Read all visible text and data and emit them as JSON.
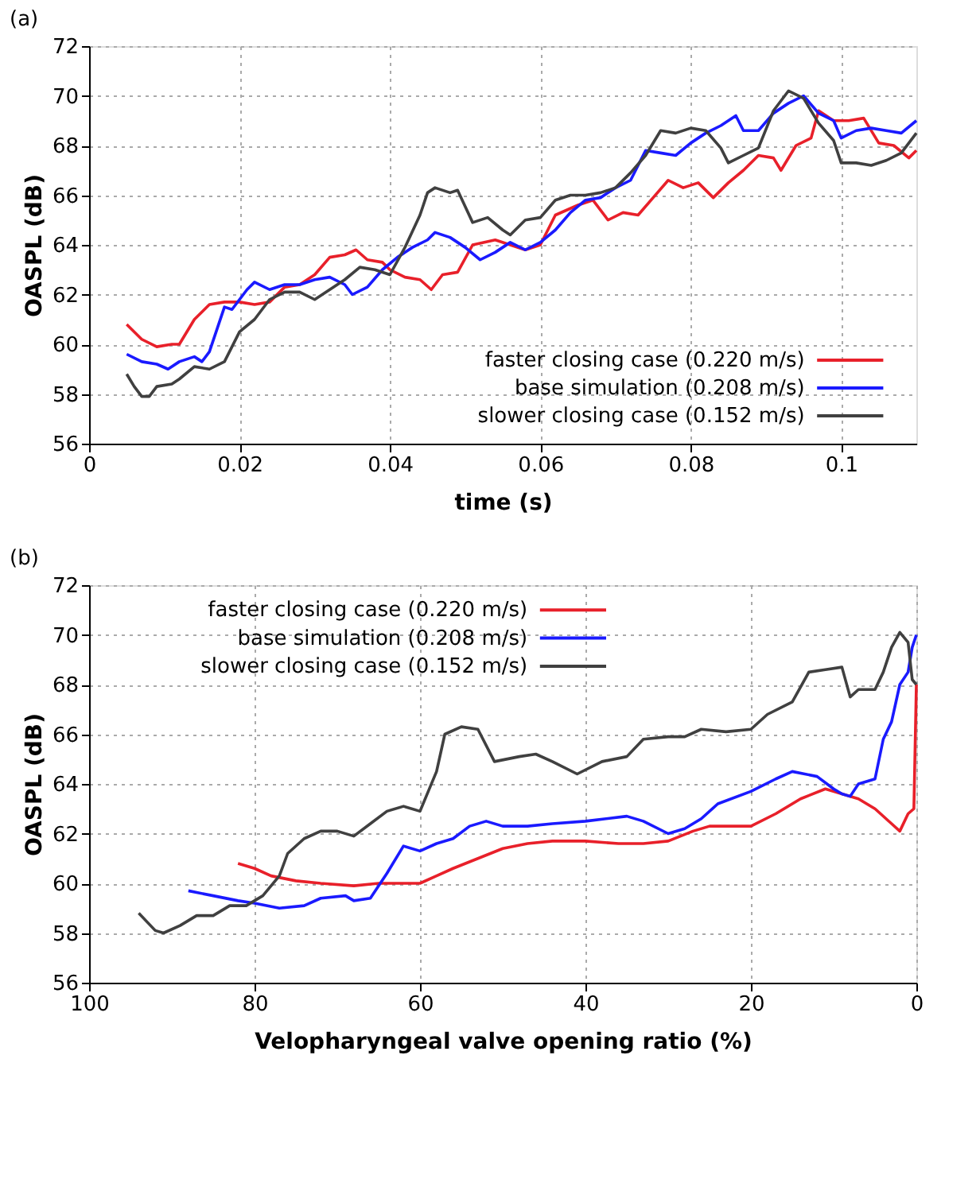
{
  "chart_data": [
    {
      "type": "line",
      "annotations": [
        "(a)"
      ],
      "xlabel": "time (s)",
      "ylabel": "OASPL (dB)",
      "xlim": [
        0,
        0.11
      ],
      "xticks": [
        0,
        0.02,
        0.04,
        0.06,
        0.08,
        0.1
      ],
      "ylim": [
        56,
        72
      ],
      "yticks": [
        56,
        58,
        60,
        62,
        64,
        66,
        68,
        70,
        72
      ],
      "grid": true,
      "legend": "bottom right",
      "line_style": "solid",
      "series": [
        {
          "name": "faster closing case (0.220 m/s)",
          "color": "#e8202a",
          "x": [
            0.005,
            0.007,
            0.009,
            0.011,
            0.012,
            0.014,
            0.016,
            0.018,
            0.02,
            0.022,
            0.024,
            0.026,
            0.028,
            0.03,
            0.032,
            0.034,
            0.0355,
            0.037,
            0.039,
            0.04,
            0.042,
            0.044,
            0.0455,
            0.047,
            0.049,
            0.051,
            0.054,
            0.056,
            0.058,
            0.06,
            0.062,
            0.065,
            0.067,
            0.069,
            0.071,
            0.073,
            0.075,
            0.077,
            0.079,
            0.081,
            0.083,
            0.085,
            0.087,
            0.089,
            0.091,
            0.092,
            0.094,
            0.096,
            0.097,
            0.099,
            0.101,
            0.103,
            0.105,
            0.107,
            0.109,
            0.11
          ],
          "values": [
            60.8,
            60.2,
            59.9,
            60.0,
            60.0,
            61.0,
            61.6,
            61.7,
            61.7,
            61.6,
            61.7,
            62.3,
            62.4,
            62.8,
            63.5,
            63.6,
            63.8,
            63.4,
            63.3,
            63.0,
            62.7,
            62.6,
            62.2,
            62.8,
            62.9,
            64.0,
            64.2,
            64.0,
            63.8,
            64.0,
            65.2,
            65.6,
            65.8,
            65.0,
            65.3,
            65.2,
            65.9,
            66.6,
            66.3,
            66.5,
            65.9,
            66.5,
            67.0,
            67.6,
            67.5,
            67.0,
            68.0,
            68.3,
            69.4,
            69.0,
            69.0,
            69.1,
            68.1,
            68.0,
            67.5,
            67.8
          ]
        },
        {
          "name": "base simulation (0.208 m/s)",
          "color": "#1a1aff",
          "x": [
            0.005,
            0.007,
            0.009,
            0.0105,
            0.012,
            0.014,
            0.015,
            0.016,
            0.018,
            0.019,
            0.021,
            0.022,
            0.024,
            0.026,
            0.028,
            0.03,
            0.032,
            0.034,
            0.035,
            0.037,
            0.039,
            0.041,
            0.043,
            0.045,
            0.046,
            0.048,
            0.05,
            0.052,
            0.054,
            0.056,
            0.058,
            0.06,
            0.062,
            0.064,
            0.066,
            0.068,
            0.07,
            0.072,
            0.074,
            0.076,
            0.078,
            0.08,
            0.082,
            0.084,
            0.086,
            0.087,
            0.089,
            0.091,
            0.093,
            0.095,
            0.097,
            0.099,
            0.1,
            0.102,
            0.104,
            0.106,
            0.108,
            0.11
          ],
          "values": [
            59.6,
            59.3,
            59.2,
            59.0,
            59.3,
            59.5,
            59.3,
            59.7,
            61.5,
            61.4,
            62.2,
            62.5,
            62.2,
            62.4,
            62.4,
            62.6,
            62.7,
            62.4,
            62.0,
            62.3,
            63.0,
            63.5,
            63.9,
            64.2,
            64.5,
            64.3,
            63.9,
            63.4,
            63.7,
            64.1,
            63.8,
            64.1,
            64.6,
            65.3,
            65.8,
            65.9,
            66.3,
            66.6,
            67.8,
            67.7,
            67.6,
            68.1,
            68.5,
            68.8,
            69.2,
            68.6,
            68.6,
            69.3,
            69.7,
            70.0,
            69.3,
            69.0,
            68.3,
            68.6,
            68.7,
            68.6,
            68.5,
            69.0
          ]
        },
        {
          "name": "slower closing case (0.152 m/s)",
          "color": "#404040",
          "x": [
            0.005,
            0.006,
            0.007,
            0.008,
            0.009,
            0.011,
            0.012,
            0.014,
            0.016,
            0.018,
            0.02,
            0.022,
            0.024,
            0.026,
            0.028,
            0.03,
            0.032,
            0.034,
            0.036,
            0.038,
            0.04,
            0.042,
            0.044,
            0.045,
            0.046,
            0.048,
            0.049,
            0.051,
            0.053,
            0.055,
            0.056,
            0.058,
            0.06,
            0.062,
            0.064,
            0.066,
            0.068,
            0.07,
            0.072,
            0.074,
            0.076,
            0.078,
            0.08,
            0.082,
            0.084,
            0.085,
            0.087,
            0.089,
            0.091,
            0.093,
            0.095,
            0.097,
            0.099,
            0.1,
            0.102,
            0.104,
            0.106,
            0.108,
            0.11
          ],
          "values": [
            58.8,
            58.3,
            57.9,
            57.9,
            58.3,
            58.4,
            58.6,
            59.1,
            59.0,
            59.3,
            60.5,
            61.0,
            61.8,
            62.1,
            62.1,
            61.8,
            62.2,
            62.6,
            63.1,
            63.0,
            62.8,
            63.9,
            65.2,
            66.1,
            66.3,
            66.1,
            66.2,
            64.9,
            65.1,
            64.6,
            64.4,
            65.0,
            65.1,
            65.8,
            66.0,
            66.0,
            66.1,
            66.3,
            66.9,
            67.6,
            68.6,
            68.5,
            68.7,
            68.6,
            67.9,
            67.3,
            67.6,
            67.9,
            69.4,
            70.2,
            69.9,
            68.9,
            68.2,
            67.3,
            67.3,
            67.2,
            67.4,
            67.7,
            68.5
          ]
        }
      ]
    },
    {
      "type": "line",
      "annotations": [
        "(b)"
      ],
      "xlabel": "Velopharyngeal valve opening ratio (%)",
      "ylabel": "OASPL (dB)",
      "xlim": [
        100,
        0
      ],
      "xticks": [
        100,
        80,
        60,
        40,
        20,
        0
      ],
      "ylim": [
        56,
        72
      ],
      "yticks": [
        56,
        58,
        60,
        62,
        64,
        66,
        68,
        70,
        72
      ],
      "grid": true,
      "legend": "top left",
      "line_style": "solid",
      "series": [
        {
          "name": "faster closing case (0.220 m/s)",
          "color": "#e8202a",
          "x": [
            82,
            80,
            78,
            75,
            72,
            68,
            65,
            62,
            60,
            58,
            56,
            53,
            50,
            47,
            44,
            40,
            36,
            33,
            30,
            27,
            25,
            20,
            17,
            14,
            11,
            9,
            7,
            5,
            3,
            2,
            1,
            0.3,
            0
          ],
          "values": [
            60.8,
            60.6,
            60.3,
            60.1,
            60.0,
            59.9,
            60.0,
            60.0,
            60.0,
            60.3,
            60.6,
            61.0,
            61.4,
            61.6,
            61.7,
            61.7,
            61.6,
            61.6,
            61.7,
            62.1,
            62.3,
            62.3,
            62.8,
            63.4,
            63.8,
            63.6,
            63.4,
            63.0,
            62.4,
            62.1,
            62.8,
            63.0,
            68.0
          ]
        },
        {
          "name": "base simulation (0.208 m/s)",
          "color": "#1a1aff",
          "x": [
            88,
            85,
            82,
            80,
            77,
            74,
            72,
            69,
            68,
            66,
            64,
            62,
            60,
            58,
            56,
            54,
            52,
            50,
            47,
            44,
            40,
            35,
            33,
            30,
            28,
            26,
            24,
            20,
            17,
            15,
            12,
            10,
            9,
            8,
            7,
            5,
            4,
            3,
            2,
            1,
            0.5,
            0
          ],
          "values": [
            59.7,
            59.5,
            59.3,
            59.2,
            59.0,
            59.1,
            59.4,
            59.5,
            59.3,
            59.4,
            60.4,
            61.5,
            61.3,
            61.6,
            61.8,
            62.3,
            62.5,
            62.3,
            62.3,
            62.4,
            62.5,
            62.7,
            62.5,
            62.0,
            62.2,
            62.6,
            63.2,
            63.7,
            64.2,
            64.5,
            64.3,
            63.8,
            63.6,
            63.5,
            64.0,
            64.2,
            65.8,
            66.5,
            68.0,
            68.5,
            69.5,
            70.0
          ]
        },
        {
          "name": "slower closing case (0.152 m/s)",
          "color": "#404040",
          "x": [
            94,
            92,
            91,
            89,
            87,
            85,
            83,
            81,
            79,
            77,
            76,
            74,
            72,
            70,
            68,
            66,
            64,
            62,
            60,
            59,
            58,
            57,
            55,
            53,
            51,
            48,
            46,
            44,
            41,
            38,
            35,
            33,
            30,
            28,
            26,
            23,
            20,
            18,
            15,
            13,
            11,
            9,
            8,
            7,
            5,
            4,
            3,
            2,
            1,
            0.5,
            0
          ],
          "values": [
            58.8,
            58.1,
            58.0,
            58.3,
            58.7,
            58.7,
            59.1,
            59.1,
            59.5,
            60.3,
            61.2,
            61.8,
            62.1,
            62.1,
            61.9,
            62.4,
            62.9,
            63.1,
            62.9,
            63.7,
            64.5,
            66.0,
            66.3,
            66.2,
            64.9,
            65.1,
            65.2,
            64.9,
            64.4,
            64.9,
            65.1,
            65.8,
            65.9,
            65.9,
            66.2,
            66.1,
            66.2,
            66.8,
            67.3,
            68.5,
            68.6,
            68.7,
            67.5,
            67.8,
            67.8,
            68.5,
            69.5,
            70.1,
            69.7,
            68.2,
            68.0
          ]
        }
      ]
    }
  ]
}
